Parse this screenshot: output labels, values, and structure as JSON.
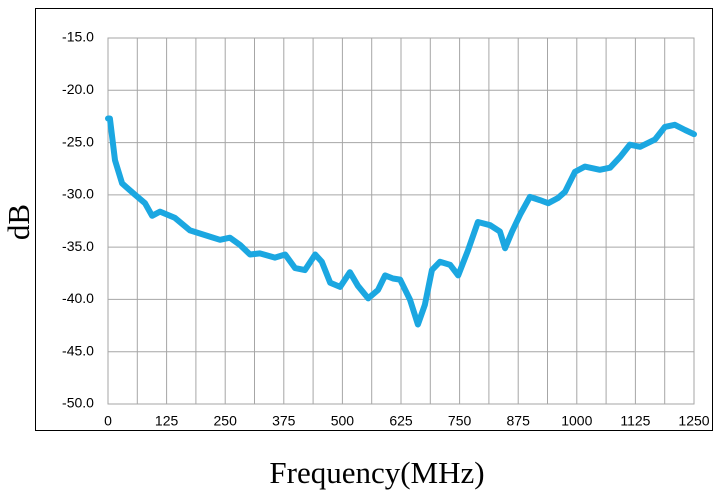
{
  "chart_data": {
    "type": "line",
    "x_label": "Frequency(MHz)",
    "y_label": "dB",
    "xlim": [
      0,
      1250
    ],
    "xticks": [
      0,
      125,
      250,
      375,
      500,
      625,
      750,
      875,
      1000,
      1125,
      1250
    ],
    "ylim": [
      -50,
      -15
    ],
    "yticks": [
      {
        "value": -50,
        "label": "-50.0"
      },
      {
        "value": -45,
        "label": "-45.0"
      },
      {
        "value": -40,
        "label": "-40.0"
      },
      {
        "value": -35,
        "label": "-35.0"
      },
      {
        "value": -30,
        "label": "-30.0"
      },
      {
        "value": -25,
        "label": "-25.0"
      },
      {
        "value": -20,
        "label": "-20.0"
      },
      {
        "value": -15,
        "label": "-15.0"
      }
    ],
    "grid": true,
    "series": [
      {
        "color": "#1ba7e1",
        "x": [
          0,
          4,
          15,
          30,
          58,
          79,
          94,
          111,
          143,
          175,
          196,
          218,
          239,
          260,
          282,
          303,
          324,
          356,
          378,
          399,
          420,
          442,
          456,
          474,
          495,
          516,
          533,
          555,
          576,
          591,
          608,
          623,
          644,
          661,
          676,
          691,
          708,
          730,
          747,
          768,
          789,
          815,
          836,
          847,
          862,
          879,
          900,
          921,
          939,
          960,
          975,
          996,
          1017,
          1049,
          1071,
          1092,
          1113,
          1135,
          1167,
          1188,
          1209,
          1231,
          1250
        ],
        "values": [
          -22.7,
          -22.7,
          -26.7,
          -28.9,
          -30,
          -30.8,
          -32,
          -31.6,
          -32.2,
          -33.4,
          -33.7,
          -34,
          -34.3,
          -34.1,
          -34.8,
          -35.7,
          -35.6,
          -36,
          -35.7,
          -37,
          -37.2,
          -35.7,
          -36.4,
          -38.4,
          -38.8,
          -37.4,
          -38.7,
          -39.9,
          -39.1,
          -37.7,
          -38,
          -38.1,
          -40,
          -42.4,
          -40.5,
          -37.2,
          -36.4,
          -36.7,
          -37.7,
          -35.3,
          -32.6,
          -32.9,
          -33.5,
          -35.1,
          -33.5,
          -31.9,
          -30.2,
          -30.5,
          -30.8,
          -30.3,
          -29.7,
          -27.8,
          -27.3,
          -27.6,
          -27.4,
          -26.4,
          -25.2,
          -25.4,
          -24.7,
          -23.5,
          -23.3,
          -23.8,
          -24.2
        ]
      }
    ]
  }
}
